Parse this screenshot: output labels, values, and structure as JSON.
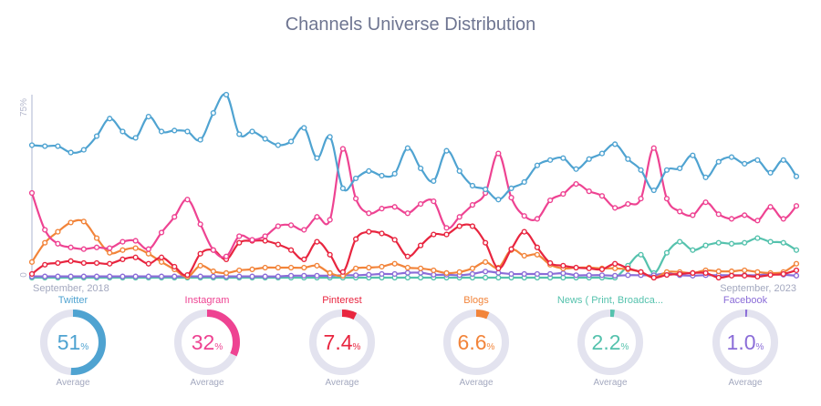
{
  "chart_data": {
    "type": "line",
    "title": "Channels Universe Distribution",
    "x_start_label": "September, 2018",
    "x_end_label": "September, 2023",
    "y_ticks": [
      "0",
      "75%"
    ],
    "ylim": [
      0,
      75
    ],
    "grid": false,
    "series": [
      {
        "name": "Twitter",
        "color": "#4fa3d1",
        "values": [
          54.3,
          53.9,
          53.9,
          51.3,
          52.4,
          58.0,
          65.2,
          59.9,
          57.3,
          66.0,
          59.9,
          60.3,
          59.9,
          56.5,
          67.5,
          75.0,
          58.8,
          59.9,
          56.9,
          54.3,
          55.8,
          61.4,
          49.0,
          57.7,
          36.6,
          40.7,
          43.7,
          41.8,
          42.6,
          53.1,
          44.8,
          39.6,
          52.0,
          43.7,
          37.7,
          36.2,
          32.0,
          36.6,
          39.2,
          46.0,
          48.2,
          49.0,
          44.5,
          48.6,
          50.9,
          54.7,
          48.6,
          44.1,
          35.8,
          44.1,
          44.8,
          50.1,
          41.1,
          47.5,
          49.4,
          46.7,
          48.2,
          43.0,
          48.2,
          41.5
        ]
      },
      {
        "name": "Instagram",
        "color": "#ee4392",
        "values": [
          34.7,
          19.6,
          13.9,
          12.4,
          11.7,
          12.4,
          12.1,
          14.7,
          15.1,
          11.7,
          18.5,
          24.9,
          32.0,
          21.9,
          11.3,
          8.7,
          17.0,
          15.5,
          17.0,
          21.1,
          21.5,
          19.6,
          24.9,
          23.7,
          52.8,
          32.4,
          26.4,
          28.3,
          29.0,
          26.4,
          30.2,
          31.3,
          20.4,
          24.9,
          29.8,
          34.7,
          50.9,
          32.8,
          25.3,
          24.1,
          31.7,
          34.3,
          38.4,
          35.4,
          33.5,
          28.6,
          30.2,
          32.4,
          53.1,
          32.4,
          27.1,
          25.6,
          30.9,
          26.0,
          24.1,
          25.6,
          23.4,
          29.0,
          24.1,
          29.4
        ]
      },
      {
        "name": "Pinterest",
        "color": "#e8253f",
        "values": [
          1.5,
          5.3,
          6.0,
          6.8,
          6.0,
          6.0,
          5.7,
          7.5,
          8.3,
          5.7,
          8.3,
          4.5,
          1.1,
          9.8,
          11.3,
          7.5,
          14.3,
          15.1,
          15.1,
          13.6,
          11.3,
          7.5,
          14.7,
          9.4,
          2.3,
          15.8,
          18.8,
          18.1,
          15.5,
          8.7,
          13.2,
          17.7,
          17.7,
          21.1,
          21.1,
          14.3,
          3.8,
          11.7,
          18.8,
          12.4,
          6.0,
          4.9,
          4.1,
          3.8,
          3.4,
          5.7,
          3.8,
          2.3,
          0,
          1.1,
          1.5,
          1.9,
          1.9,
          0,
          0.8,
          0.8,
          0.4,
          1.1,
          1.5,
          3.0
        ]
      },
      {
        "name": "Blogs",
        "color": "#f2843a",
        "values": [
          6.4,
          14.3,
          18.8,
          22.6,
          23.0,
          16.2,
          10.2,
          11.3,
          12.1,
          9.8,
          6.4,
          3.4,
          0.4,
          4.9,
          2.6,
          1.9,
          3.0,
          3.4,
          4.1,
          4.1,
          4.1,
          4.1,
          4.9,
          1.9,
          0.8,
          3.8,
          4.1,
          4.5,
          5.7,
          4.1,
          3.8,
          3.0,
          1.9,
          2.3,
          3.8,
          6.4,
          4.1,
          11.3,
          9.0,
          9.4,
          5.3,
          3.8,
          4.1,
          4.1,
          3.8,
          3.8,
          3.4,
          2.3,
          0,
          2.3,
          2.3,
          1.9,
          3.0,
          2.6,
          2.6,
          3.0,
          2.3,
          1.9,
          2.3,
          5.7
        ]
      },
      {
        "name": "News ( Print, Broadca...",
        "color": "#55c2ad",
        "values": [
          0,
          0,
          0,
          0,
          0,
          0,
          0,
          0,
          0,
          0,
          0,
          0,
          0,
          0,
          0,
          0,
          0,
          0,
          0,
          0,
          0,
          0,
          0,
          0,
          0,
          0,
          0,
          0,
          0,
          0,
          0,
          0,
          0,
          0,
          0,
          0,
          0,
          0,
          0,
          0,
          0,
          0,
          0,
          0,
          0,
          0,
          4.9,
          9.4,
          1.9,
          10.2,
          14.7,
          11.3,
          13.2,
          14.3,
          13.9,
          14.3,
          16.2,
          14.7,
          14.3,
          11.3
        ]
      },
      {
        "name": "Facebook",
        "color": "#8b6dd8",
        "values": [
          0.5,
          0.5,
          0.5,
          0.5,
          0.5,
          0.5,
          0.5,
          0.5,
          0.5,
          0.5,
          0.5,
          0.5,
          0.5,
          0.5,
          0.5,
          0.5,
          0.5,
          0.5,
          0.5,
          0.5,
          0.8,
          0.8,
          0.8,
          0.8,
          1.0,
          1.0,
          1.2,
          1.5,
          1.5,
          2.0,
          2.0,
          1.2,
          1.2,
          1.0,
          1.5,
          2.5,
          2.0,
          1.5,
          1.5,
          1.5,
          1.5,
          1.8,
          1.0,
          1.0,
          1.0,
          0.8,
          1.0,
          1.0,
          1.0,
          1.8,
          1.0,
          0.8,
          1.0,
          1.0,
          1.0,
          1.0,
          1.0,
          1.5,
          1.2,
          0.8
        ]
      }
    ]
  },
  "averages": [
    {
      "name": "Twitter",
      "value": "51",
      "fraction": 0.51,
      "color": "#4fa3d1",
      "caption": "Average"
    },
    {
      "name": "Instagram",
      "value": "32",
      "fraction": 0.32,
      "color": "#ee4392",
      "caption": "Average"
    },
    {
      "name": "Pinterest",
      "value": "7.4",
      "fraction": 0.074,
      "color": "#e8253f",
      "caption": "Average"
    },
    {
      "name": "Blogs",
      "value": "6.6",
      "fraction": 0.066,
      "color": "#f2843a",
      "caption": "Average"
    },
    {
      "name": "News ( Print, Broadca...",
      "value": "2.2",
      "fraction": 0.022,
      "color": "#55c2ad",
      "caption": "Average"
    },
    {
      "name": "Facebook",
      "value": "1.0",
      "fraction": 0.01,
      "color": "#8b6dd8",
      "caption": "Average"
    }
  ],
  "percent_sign": "%"
}
